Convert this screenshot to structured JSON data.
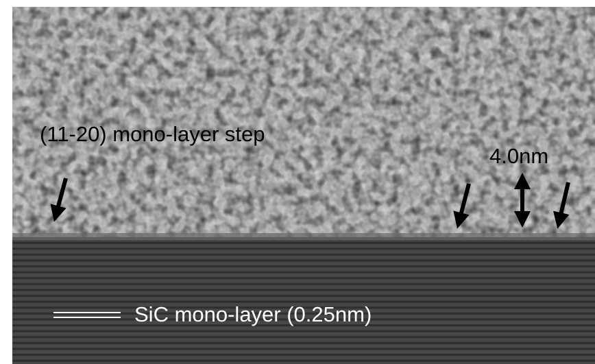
{
  "annotations": {
    "step_label": "(11-20) mono-layer step",
    "height_label": "4.0nm",
    "layer_label": "SiC mono-layer (0.25nm)"
  }
}
